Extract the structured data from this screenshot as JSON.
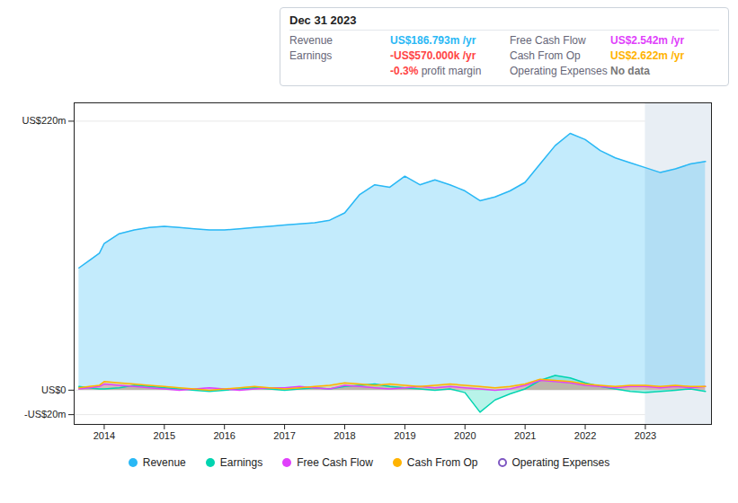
{
  "chart_data": {
    "type": "area",
    "x": [
      2013.58,
      2013.75,
      2013.92,
      2014.0,
      2014.25,
      2014.5,
      2014.75,
      2015.0,
      2015.25,
      2015.5,
      2015.75,
      2016.0,
      2016.25,
      2016.5,
      2016.75,
      2017.0,
      2017.25,
      2017.5,
      2017.75,
      2018.0,
      2018.25,
      2018.5,
      2018.75,
      2019.0,
      2019.25,
      2019.5,
      2019.75,
      2020.0,
      2020.25,
      2020.5,
      2020.75,
      2021.0,
      2021.25,
      2021.5,
      2021.75,
      2022.0,
      2022.25,
      2022.5,
      2022.75,
      2023.0,
      2023.25,
      2023.5,
      2023.75,
      2024.0
    ],
    "series": [
      {
        "name": "Revenue",
        "color": "#29b8f5",
        "marker": "circle",
        "values": [
          100,
          106,
          112,
          120,
          128,
          131,
          133,
          134,
          133,
          132,
          131,
          131,
          132,
          133,
          134,
          135,
          136,
          137,
          139,
          145,
          160,
          168,
          166,
          175,
          168,
          172,
          168,
          163,
          155,
          158,
          163,
          170,
          185,
          200,
          210,
          205,
          196,
          190,
          186,
          182,
          178,
          181,
          185,
          187
        ]
      },
      {
        "name": "Earnings",
        "color": "#00d4b0",
        "marker": "circle",
        "values": [
          3,
          2,
          1,
          1,
          2,
          4,
          3,
          2,
          1,
          0,
          -1,
          0,
          1,
          2,
          1,
          0,
          1,
          2,
          1,
          3,
          4,
          5,
          3,
          2,
          1,
          0,
          1,
          -2,
          -18,
          -8,
          -3,
          1,
          8,
          12,
          10,
          6,
          3,
          1,
          -1,
          -2,
          -1,
          0,
          1,
          -1
        ]
      },
      {
        "name": "Free Cash Flow",
        "color": "#e040fb",
        "marker": "circle",
        "values": [
          1,
          2,
          3,
          5,
          4,
          3,
          2,
          1,
          0,
          1,
          2,
          1,
          0,
          1,
          2,
          2,
          3,
          2,
          1,
          4,
          3,
          2,
          1,
          2,
          3,
          2,
          3,
          2,
          1,
          0,
          1,
          4,
          8,
          7,
          6,
          4,
          3,
          2,
          3,
          3,
          2,
          3,
          2,
          3
        ]
      },
      {
        "name": "Cash From Op",
        "color": "#ffb300",
        "marker": "circle",
        "values": [
          2,
          3,
          4,
          7,
          6,
          5,
          4,
          3,
          2,
          1,
          0,
          1,
          2,
          3,
          2,
          1,
          2,
          3,
          4,
          6,
          5,
          4,
          5,
          4,
          3,
          4,
          5,
          4,
          3,
          2,
          3,
          5,
          9,
          8,
          7,
          5,
          4,
          3,
          4,
          4,
          3,
          4,
          3,
          3
        ]
      },
      {
        "name": "Operating Expenses",
        "color": "#7e57c2",
        "marker": "circle-open",
        "values": [
          null,
          null,
          null,
          null,
          null,
          null,
          null,
          null,
          null,
          null,
          null,
          null,
          null,
          null,
          null,
          null,
          null,
          null,
          null,
          null,
          null,
          null,
          null,
          null,
          null,
          null,
          null,
          null,
          null,
          null,
          null,
          null,
          null,
          null,
          null,
          null,
          null,
          null,
          null,
          null,
          null,
          null,
          null,
          null
        ]
      }
    ],
    "xlim": [
      2013.5,
      2024.1
    ],
    "xticks": [
      2014,
      2015,
      2016,
      2017,
      2018,
      2019,
      2020,
      2021,
      2022,
      2023
    ],
    "ylim": [
      -28,
      235
    ],
    "yticks": [
      {
        "value": -20,
        "label": "-US$20m"
      },
      {
        "value": 0,
        "label": "US$0"
      },
      {
        "value": 220,
        "label": "US$220m"
      }
    ],
    "grid": true,
    "legend": "bottom",
    "highlight_x": [
      2023.0,
      2024.1
    ],
    "annotations": [
      {
        "title": "Dec 31 2023",
        "rows": [
          {
            "label": "Revenue",
            "value": "US$186.793m /yr",
            "color": "#29b8f5"
          },
          {
            "label": "Earnings",
            "value": "-US$570.000k /yr",
            "color": "#ff4444"
          },
          {
            "value": "-0.3%",
            "suffix": " profit margin",
            "color": "#ff4444"
          },
          {
            "label": "Free Cash Flow",
            "value": "US$2.542m /yr",
            "color": "#e040fb"
          },
          {
            "label": "Cash From Op",
            "value": "US$2.622m /yr",
            "color": "#ffb300"
          },
          {
            "label": "Operating Expenses",
            "value": "No data",
            "color": "#777777"
          }
        ]
      }
    ]
  }
}
